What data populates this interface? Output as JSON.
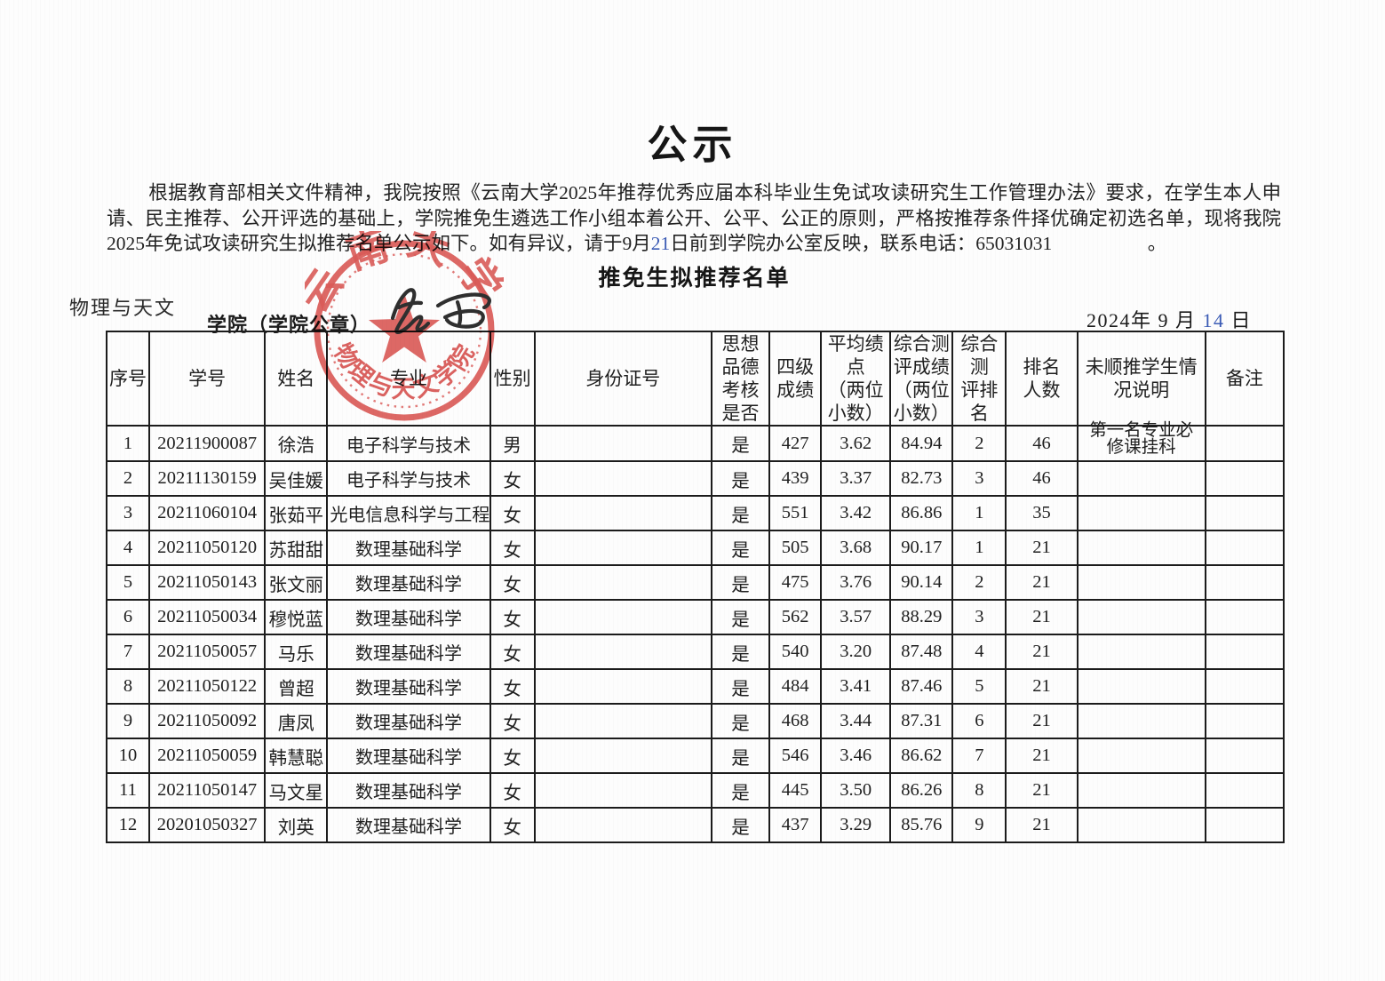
{
  "doc": {
    "title": "公示",
    "paragraph": {
      "part1": "根据教育部相关文件精神，我院按照《云南大学2025年推荐优秀应届本科毕业生免试攻读研究生工作管理办法》要求，在学生本人申请、民主推荐、公开评选的基础上，学院推免生遴选工作小组本着公开、公平、公正的原则，严格按推荐条件择优确定初选名单，现将我院2025年免试攻读研究生拟推荐名单公示如下。如有异议，请于9月",
      "deadline_day": "21",
      "part2": "日前到学院办公室反映，联系电话：65031031　　　　　。"
    },
    "subtitle": "推免生拟推荐名单",
    "college_name": "物理与天文",
    "college_suffix_line": "学院（学院公章）",
    "date": {
      "prefix": "2024年 9 月 ",
      "day": "14",
      "suffix": " 日"
    }
  },
  "stamp": {
    "university": "云南大学",
    "college": "物理与天文学院",
    "color": "#d94f4c"
  },
  "table": {
    "headers": [
      "序号",
      "学号",
      "姓名",
      "专业",
      "性别",
      "身份证号",
      "思想\n品德\n考核\n是否",
      "四级\n成绩",
      "平均绩\n点\n（两位\n小数）",
      "综合测\n评成绩\n（两位\n小数）",
      "综合测\n评排名",
      "排名\n人数",
      "未顺推学生情\n况说明",
      "备注"
    ],
    "rows": [
      [
        "1",
        "20211900087",
        "徐浩",
        "电子科学与技术",
        "男",
        "",
        "是",
        "427",
        "3.62",
        "84.94",
        "2",
        "46",
        "第一名专业必\n修课挂科",
        ""
      ],
      [
        "2",
        "20211130159",
        "吴佳媛",
        "电子科学与技术",
        "女",
        "",
        "是",
        "439",
        "3.37",
        "82.73",
        "3",
        "46",
        "",
        ""
      ],
      [
        "3",
        "20211060104",
        "张茹平",
        "光电信息科学与工程",
        "女",
        "",
        "是",
        "551",
        "3.42",
        "86.86",
        "1",
        "35",
        "",
        ""
      ],
      [
        "4",
        "20211050120",
        "苏甜甜",
        "数理基础科学",
        "女",
        "",
        "是",
        "505",
        "3.68",
        "90.17",
        "1",
        "21",
        "",
        ""
      ],
      [
        "5",
        "20211050143",
        "张文丽",
        "数理基础科学",
        "女",
        "",
        "是",
        "475",
        "3.76",
        "90.14",
        "2",
        "21",
        "",
        ""
      ],
      [
        "6",
        "20211050034",
        "穆悦蓝",
        "数理基础科学",
        "女",
        "",
        "是",
        "562",
        "3.57",
        "88.29",
        "3",
        "21",
        "",
        ""
      ],
      [
        "7",
        "20211050057",
        "马乐",
        "数理基础科学",
        "女",
        "",
        "是",
        "540",
        "3.20",
        "87.48",
        "4",
        "21",
        "",
        ""
      ],
      [
        "8",
        "20211050122",
        "曾超",
        "数理基础科学",
        "女",
        "",
        "是",
        "484",
        "3.41",
        "87.46",
        "5",
        "21",
        "",
        ""
      ],
      [
        "9",
        "20211050092",
        "唐凤",
        "数理基础科学",
        "女",
        "",
        "是",
        "468",
        "3.44",
        "87.31",
        "6",
        "21",
        "",
        ""
      ],
      [
        "10",
        "20211050059",
        "韩慧聪",
        "数理基础科学",
        "女",
        "",
        "是",
        "546",
        "3.46",
        "86.62",
        "7",
        "21",
        "",
        ""
      ],
      [
        "11",
        "20211050147",
        "马文星",
        "数理基础科学",
        "女",
        "",
        "是",
        "445",
        "3.50",
        "86.26",
        "8",
        "21",
        "",
        ""
      ],
      [
        "12",
        "20201050327",
        "刘英",
        "数理基础科学",
        "女",
        "",
        "是",
        "437",
        "3.29",
        "85.76",
        "9",
        "21",
        "",
        ""
      ]
    ]
  }
}
